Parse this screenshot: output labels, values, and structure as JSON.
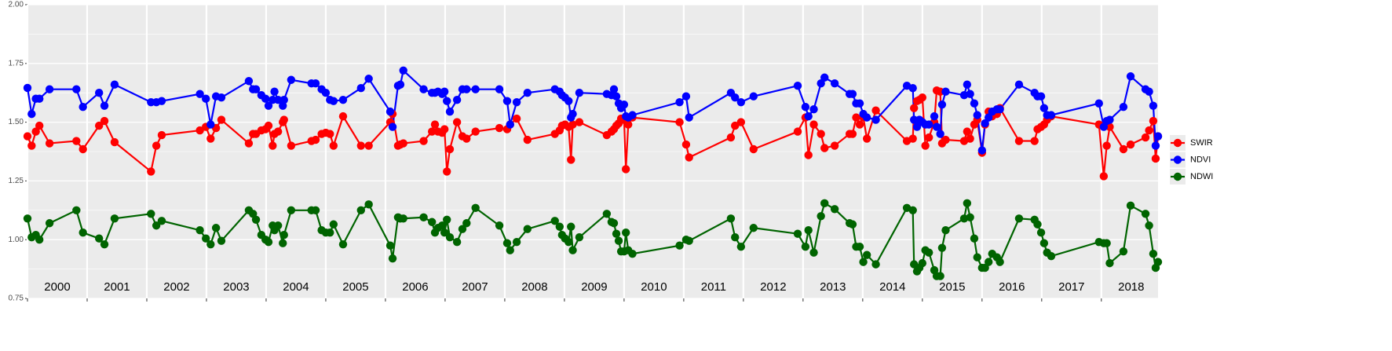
{
  "chart_data": {
    "type": "line",
    "x": [
      2000.0,
      2000.07,
      2000.14,
      2000.2,
      2000.37,
      2000.82,
      2000.93,
      2001.2,
      2001.29,
      2001.46,
      2002.07,
      2002.16,
      2002.25,
      2002.89,
      2002.99,
      2003.07,
      2003.16,
      2003.25,
      2003.71,
      2003.78,
      2003.83,
      2003.92,
      2003.99,
      2004.04,
      2004.11,
      2004.14,
      2004.2,
      2004.28,
      2004.3,
      2004.42,
      2004.76,
      2004.83,
      2004.93,
      2005.0,
      2005.07,
      2005.13,
      2005.29,
      2005.59,
      2005.72,
      2006.08,
      2006.12,
      2006.21,
      2006.25,
      2006.3,
      2006.64,
      2006.78,
      2006.83,
      2006.88,
      2006.95,
      2006.99,
      2007.03,
      2007.08,
      2007.2,
      2007.29,
      2007.36,
      2007.51,
      2007.91,
      2008.04,
      2008.09,
      2008.2,
      2008.38,
      2008.84,
      2008.92,
      2008.96,
      2009.01,
      2009.07,
      2009.11,
      2009.14,
      2009.25,
      2009.71,
      2009.79,
      2009.83,
      2009.87,
      2009.91,
      2009.95,
      2010.0,
      2010.03,
      2010.07,
      2010.14,
      2010.93,
      2011.04,
      2011.09,
      2011.79,
      2011.86,
      2011.96,
      2012.17,
      2012.91,
      2013.04,
      2013.09,
      2013.18,
      2013.3,
      2013.36,
      2013.53,
      2013.78,
      2013.83,
      2013.89,
      2013.95,
      2014.01,
      2014.07,
      2014.22,
      2014.74,
      2014.84,
      2014.86,
      2014.91,
      2014.95,
      2015.0,
      2015.05,
      2015.11,
      2015.2,
      2015.24,
      2015.3,
      2015.33,
      2015.39,
      2015.7,
      2015.75,
      2015.8,
      2015.87,
      2015.92,
      2016.0,
      2016.05,
      2016.11,
      2016.17,
      2016.25,
      2016.3,
      2016.62,
      2016.88,
      2016.93,
      2016.99,
      2017.04,
      2017.09,
      2017.16,
      2017.96,
      2018.04,
      2018.09,
      2018.14,
      2018.37,
      2018.49,
      2018.74,
      2018.8,
      2018.87,
      2018.91,
      2018.95
    ],
    "series": [
      {
        "name": "SWIR",
        "color": "#ff0000",
        "values": [
          1.44,
          1.4,
          1.46,
          1.485,
          1.41,
          1.42,
          1.385,
          1.485,
          1.505,
          1.415,
          1.29,
          1.4,
          1.445,
          1.465,
          1.48,
          1.43,
          1.475,
          1.51,
          1.41,
          1.45,
          1.45,
          1.465,
          1.47,
          1.485,
          1.4,
          1.45,
          1.46,
          1.5,
          1.51,
          1.4,
          1.42,
          1.425,
          1.45,
          1.455,
          1.45,
          1.4,
          1.525,
          1.4,
          1.4,
          1.5,
          1.535,
          1.4,
          1.405,
          1.41,
          1.42,
          1.46,
          1.49,
          1.46,
          1.455,
          1.47,
          1.29,
          1.385,
          1.5,
          1.44,
          1.43,
          1.46,
          1.475,
          1.47,
          1.49,
          1.515,
          1.425,
          1.45,
          1.465,
          1.485,
          1.49,
          1.48,
          1.34,
          1.49,
          1.5,
          1.445,
          1.46,
          1.47,
          1.485,
          1.495,
          1.515,
          1.51,
          1.3,
          1.49,
          1.52,
          1.5,
          1.405,
          1.35,
          1.435,
          1.485,
          1.5,
          1.385,
          1.46,
          1.52,
          1.36,
          1.49,
          1.45,
          1.39,
          1.4,
          1.45,
          1.45,
          1.52,
          1.49,
          1.52,
          1.43,
          1.55,
          1.42,
          1.43,
          1.56,
          1.59,
          1.595,
          1.605,
          1.4,
          1.435,
          1.5,
          1.635,
          1.63,
          1.41,
          1.425,
          1.42,
          1.46,
          1.43,
          1.49,
          1.51,
          1.37,
          1.49,
          1.545,
          1.525,
          1.535,
          1.56,
          1.42,
          1.42,
          1.47,
          1.48,
          1.49,
          1.51,
          1.525,
          1.49,
          1.27,
          1.4,
          1.48,
          1.385,
          1.405,
          1.435,
          1.465,
          1.505,
          1.345,
          1.44
        ]
      },
      {
        "name": "NDVI",
        "color": "#0000ff",
        "values": [
          1.646,
          1.535,
          1.6,
          1.6,
          1.64,
          1.64,
          1.565,
          1.625,
          1.57,
          1.66,
          1.585,
          1.585,
          1.59,
          1.62,
          1.6,
          1.49,
          1.61,
          1.605,
          1.675,
          1.64,
          1.64,
          1.615,
          1.6,
          1.57,
          1.595,
          1.63,
          1.595,
          1.57,
          1.595,
          1.68,
          1.665,
          1.665,
          1.64,
          1.625,
          1.595,
          1.59,
          1.595,
          1.645,
          1.685,
          1.545,
          1.48,
          1.655,
          1.66,
          1.72,
          1.64,
          1.625,
          1.625,
          1.63,
          1.62,
          1.63,
          1.59,
          1.545,
          1.595,
          1.64,
          1.64,
          1.64,
          1.64,
          1.59,
          1.49,
          1.585,
          1.625,
          1.64,
          1.63,
          1.615,
          1.605,
          1.59,
          1.52,
          1.535,
          1.625,
          1.62,
          1.615,
          1.64,
          1.61,
          1.58,
          1.56,
          1.575,
          1.525,
          1.52,
          1.53,
          1.585,
          1.61,
          1.52,
          1.625,
          1.605,
          1.585,
          1.61,
          1.655,
          1.565,
          1.525,
          1.555,
          1.665,
          1.69,
          1.665,
          1.62,
          1.62,
          1.58,
          1.58,
          1.535,
          1.52,
          1.51,
          1.655,
          1.645,
          1.51,
          1.48,
          1.51,
          1.5,
          1.49,
          1.49,
          1.525,
          1.48,
          1.45,
          1.575,
          1.63,
          1.615,
          1.66,
          1.62,
          1.58,
          1.53,
          1.38,
          1.495,
          1.52,
          1.545,
          1.555,
          1.555,
          1.66,
          1.625,
          1.61,
          1.61,
          1.56,
          1.53,
          1.53,
          1.58,
          1.48,
          1.505,
          1.51,
          1.565,
          1.695,
          1.64,
          1.63,
          1.57,
          1.4,
          1.44
        ]
      },
      {
        "name": "NDWI",
        "color": "#006400",
        "values": [
          1.09,
          1.01,
          1.02,
          1.0,
          1.07,
          1.125,
          1.03,
          1.005,
          0.98,
          1.09,
          1.11,
          1.06,
          1.08,
          1.04,
          1.005,
          0.98,
          1.05,
          0.995,
          1.125,
          1.11,
          1.085,
          1.02,
          1.0,
          0.99,
          1.06,
          1.04,
          1.06,
          0.985,
          1.02,
          1.125,
          1.125,
          1.125,
          1.04,
          1.03,
          1.03,
          1.065,
          0.98,
          1.125,
          1.15,
          0.975,
          0.92,
          1.095,
          1.09,
          1.09,
          1.095,
          1.075,
          1.03,
          1.05,
          1.06,
          1.03,
          1.085,
          1.01,
          0.99,
          1.045,
          1.07,
          1.135,
          1.06,
          0.985,
          0.955,
          0.99,
          1.045,
          1.08,
          1.055,
          1.02,
          1.005,
          0.99,
          1.055,
          0.955,
          1.01,
          1.11,
          1.075,
          1.07,
          1.025,
          0.995,
          0.95,
          0.95,
          1.03,
          0.955,
          0.94,
          0.975,
          1.0,
          0.995,
          1.09,
          1.01,
          0.97,
          1.05,
          1.025,
          0.97,
          1.04,
          0.945,
          1.1,
          1.155,
          1.13,
          1.07,
          1.065,
          0.97,
          0.97,
          0.905,
          0.935,
          0.895,
          1.135,
          1.125,
          0.895,
          0.865,
          0.88,
          0.9,
          0.955,
          0.945,
          0.87,
          0.845,
          0.845,
          0.965,
          1.04,
          1.09,
          1.155,
          1.095,
          1.005,
          0.925,
          0.88,
          0.88,
          0.905,
          0.94,
          0.925,
          0.905,
          1.09,
          1.085,
          1.065,
          1.03,
          0.985,
          0.945,
          0.93,
          0.99,
          0.985,
          0.985,
          0.9,
          0.95,
          1.145,
          1.11,
          1.06,
          0.94,
          0.88,
          0.905
        ]
      }
    ],
    "xlim": [
      2000,
      2018.95
    ],
    "xticks": [
      2000,
      2001,
      2002,
      2003,
      2004,
      2005,
      2006,
      2007,
      2008,
      2009,
      2010,
      2011,
      2012,
      2013,
      2014,
      2015,
      2016,
      2017,
      2018
    ],
    "year_labels": [
      "2000",
      "2001",
      "2002",
      "2003",
      "2004",
      "2005",
      "2006",
      "2007",
      "2008",
      "2009",
      "2010",
      "2011",
      "2012",
      "2013",
      "2014",
      "2015",
      "2016",
      "2017",
      "2018"
    ],
    "ylim": [
      0.75,
      2.0
    ],
    "yticks": [
      0.75,
      {
        "value": 1.0,
        "label": "1.00"
      },
      1.25,
      {
        "value": 1.5,
        "label": "1.50"
      },
      1.75,
      {
        "value": 2.0,
        "label": "2.00"
      }
    ],
    "grid": true,
    "minor_grid": true,
    "legend": "right"
  }
}
